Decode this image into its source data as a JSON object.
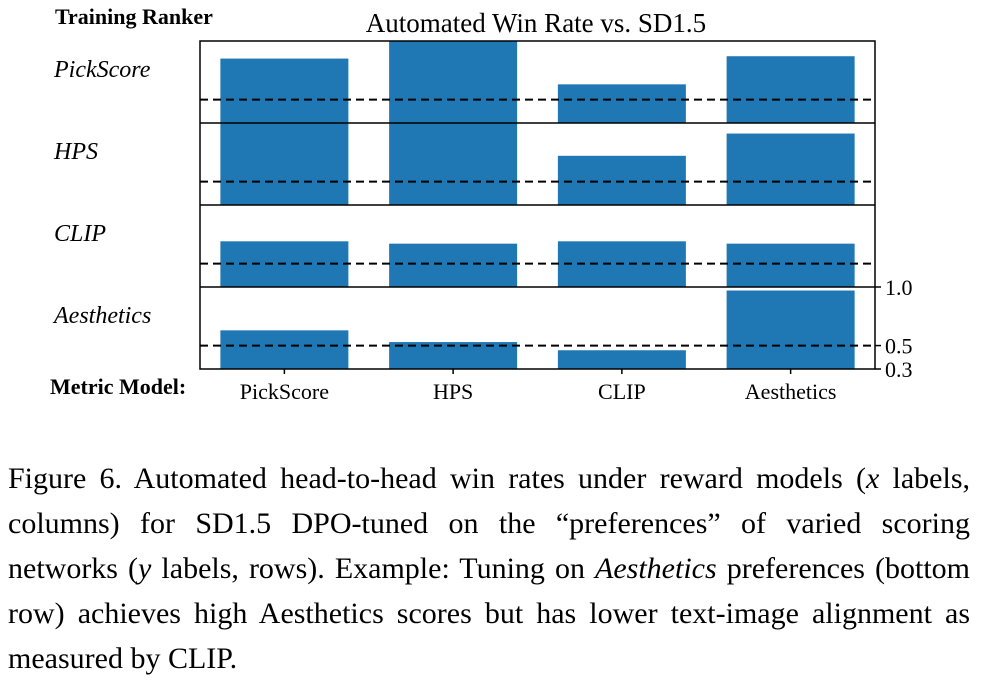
{
  "chart_data": {
    "type": "bar",
    "title": "Automated Win Rate vs. SD1.5",
    "row_header": "Training Ranker",
    "column_header": "Metric Model:",
    "rows": [
      "PickScore",
      "HPS",
      "CLIP",
      "Aesthetics"
    ],
    "categories": [
      "PickScore",
      "HPS",
      "CLIP",
      "Aesthetics"
    ],
    "series": [
      {
        "name": "PickScore",
        "values": [
          0.85,
          1.0,
          0.63,
          0.87
        ]
      },
      {
        "name": "HPS",
        "values": [
          1.0,
          1.0,
          0.72,
          0.91
        ]
      },
      {
        "name": "CLIP",
        "values": [
          0.69,
          0.67,
          0.69,
          0.67
        ]
      },
      {
        "name": "Aesthetics",
        "values": [
          0.63,
          0.53,
          0.46,
          0.97
        ]
      }
    ],
    "ylim": [
      0.3,
      1.0
    ],
    "yticks": [
      1.0,
      0.5,
      0.3
    ],
    "ytick_labels": [
      "1.0",
      "0.5",
      "0.3"
    ],
    "reference_line": 0.5,
    "bar_color": "#1f77b4"
  },
  "caption": {
    "label": "Figure 6.",
    "text_1": " Automated head-to-head win rates under reward models (",
    "var_x": "x",
    "text_2": " labels, columns) for SD1.5 DPO-tuned on the “preferences” of varied scoring networks (",
    "var_y": "y",
    "text_3": " labels, rows). Example: Tuning on ",
    "emph": "Aesthetics",
    "text_4": " preferences (bottom row) achieves high Aesthetics scores but has lower text-image alignment as measured by CLIP."
  }
}
